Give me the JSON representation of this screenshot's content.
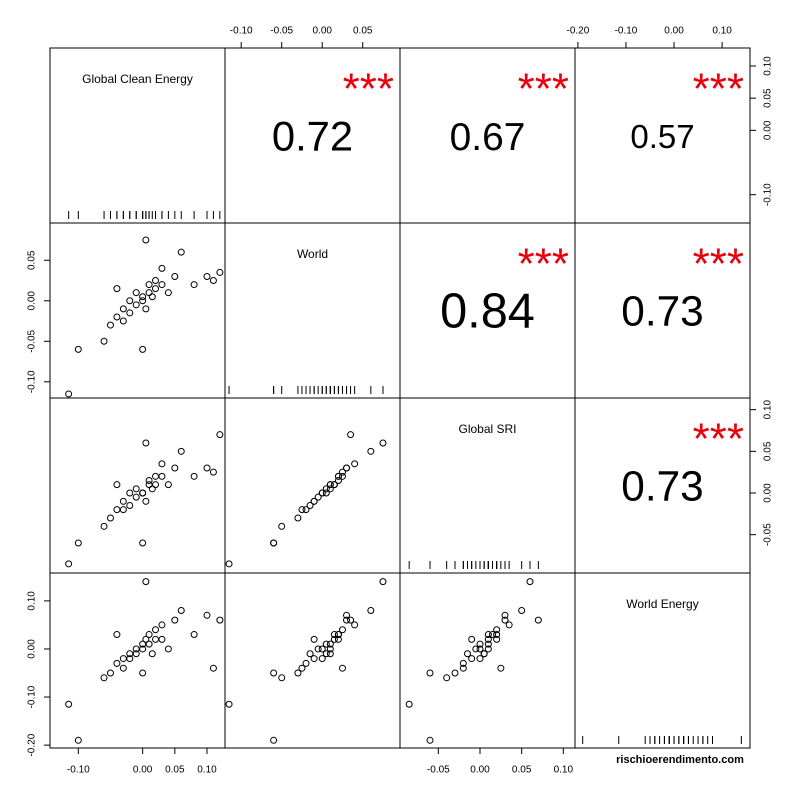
{
  "chart_data": {
    "type": "scatter-matrix",
    "series": [
      {
        "name": "Global Clean Energy",
        "lim": [
          -0.144,
          0.128
        ],
        "ticks": [
          {
            "value": -0.1,
            "label": "-0.10"
          },
          {
            "value": 0,
            "label": "0.00"
          },
          {
            "value": 0.05,
            "label": "0.05"
          },
          {
            "value": 0.1,
            "label": "0.10"
          }
        ],
        "values": [
          -0.115,
          -0.1,
          -0.06,
          -0.05,
          -0.04,
          -0.03,
          -0.03,
          -0.02,
          -0.02,
          -0.01,
          -0.01,
          0,
          0,
          0.005,
          0.01,
          0.01,
          0.015,
          0.02,
          0.02,
          0.03,
          0.03,
          0.04,
          0.05,
          0.06,
          0.005,
          0.08,
          -0.04,
          0.1,
          0.11,
          0,
          0.12
        ]
      },
      {
        "name": "World",
        "lim": [
          -0.12,
          0.096
        ],
        "ticks": [
          {
            "value": -0.1,
            "label": "-0.10"
          },
          {
            "value": -0.05,
            "label": "-0.05"
          },
          {
            "value": 0,
            "label": "0.00"
          },
          {
            "value": 0.05,
            "label": "0.05"
          }
        ],
        "values": [
          -0.115,
          -0.06,
          -0.05,
          -0.03,
          -0.02,
          -0.025,
          -0.01,
          -0.015,
          0,
          -0.005,
          0.01,
          0,
          0.005,
          -0.01,
          0.01,
          0.02,
          0.005,
          0.015,
          0.025,
          0.02,
          0.04,
          0.01,
          0.03,
          0.06,
          0.075,
          0.02,
          0.015,
          0.03,
          0.025,
          -0.06,
          0.035
        ]
      },
      {
        "name": "Global SRI",
        "lim": [
          -0.096,
          0.114
        ],
        "ticks": [
          {
            "value": -0.05,
            "label": "-0.05"
          },
          {
            "value": 0,
            "label": "0.00"
          },
          {
            "value": 0.05,
            "label": "0.05"
          },
          {
            "value": 0.1,
            "label": "0.10"
          }
        ],
        "values": [
          -0.085,
          -0.06,
          -0.04,
          -0.03,
          -0.02,
          -0.02,
          -0.01,
          -0.015,
          0,
          -0.005,
          0.005,
          0,
          0,
          -0.01,
          0.01,
          0.015,
          0.005,
          0.01,
          0.02,
          0.02,
          0.035,
          0.01,
          0.03,
          0.05,
          0.06,
          0.02,
          0.01,
          0.03,
          0.025,
          -0.06,
          0.07
        ]
      },
      {
        "name": "World Energy",
        "lim": [
          -0.206,
          0.158
        ],
        "ticks": [
          {
            "value": -0.2,
            "label": "-0.20"
          },
          {
            "value": -0.1,
            "label": "-0.10"
          },
          {
            "value": 0,
            "label": "0.00"
          },
          {
            "value": 0.1,
            "label": "0.10"
          }
        ],
        "values": [
          -0.115,
          -0.19,
          -0.06,
          -0.05,
          -0.03,
          -0.04,
          -0.02,
          -0.01,
          -0.02,
          0,
          -0.01,
          0,
          0.01,
          0.02,
          0.01,
          0.03,
          -0.01,
          0.02,
          0.04,
          0.02,
          0.05,
          0,
          0.06,
          0.08,
          0.14,
          0.03,
          0.03,
          0.07,
          -0.04,
          -0.05,
          0.06
        ]
      }
    ],
    "correlations": [
      [
        null,
        0.72,
        0.67,
        0.57
      ],
      [
        null,
        null,
        0.84,
        0.73
      ],
      [
        null,
        null,
        null,
        0.73
      ],
      [
        null,
        null,
        null,
        null
      ]
    ],
    "stars": [
      [
        null,
        "***",
        "***",
        "***"
      ],
      [
        null,
        null,
        "***",
        "***"
      ],
      [
        null,
        null,
        null,
        "***"
      ],
      [
        null,
        null,
        null,
        null
      ]
    ],
    "point_color": "#000000",
    "star_color": "#e8000b",
    "source": "rischioerendimento.com"
  }
}
